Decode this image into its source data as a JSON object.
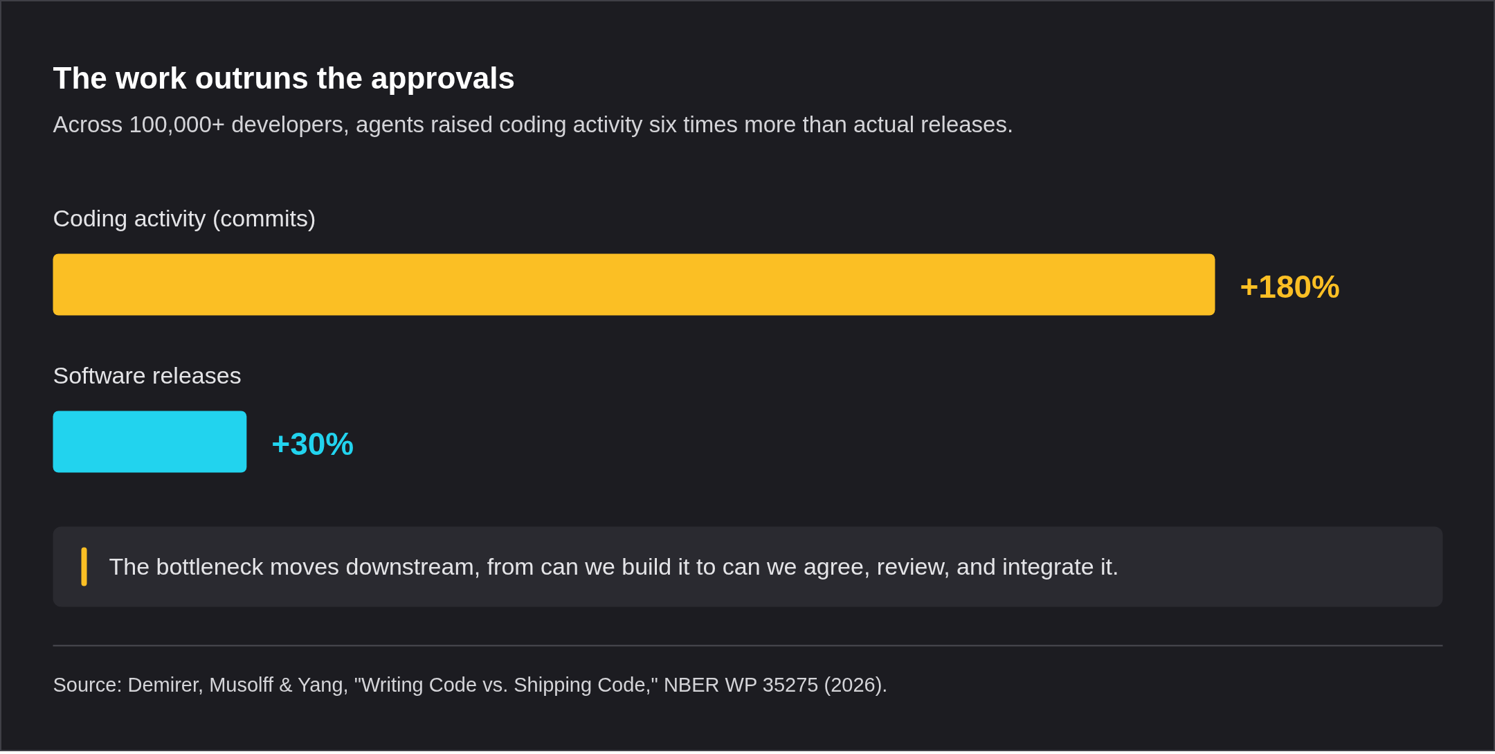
{
  "chart_data": {
    "type": "bar",
    "orientation": "horizontal",
    "title": "The work outruns the approvals",
    "subtitle": "Across 100,000+ developers, agents raised coding activity six times more than actual releases.",
    "categories": [
      "Coding activity (commits)",
      "Software releases"
    ],
    "values": [
      180,
      30
    ],
    "colors": [
      "#fbbf24",
      "#22d3ee"
    ],
    "value_labels": [
      "+180%",
      "+30%"
    ],
    "tick_labels": false,
    "grid": false,
    "annotations": [
      "The bottleneck moves downstream, from can we build it to can we agree, review, and integrate it.",
      "Source: Demirer, Musolff & Yang, \"Writing Code vs. Shipping Code,\" NBER WP 35275 (2026)."
    ]
  }
}
